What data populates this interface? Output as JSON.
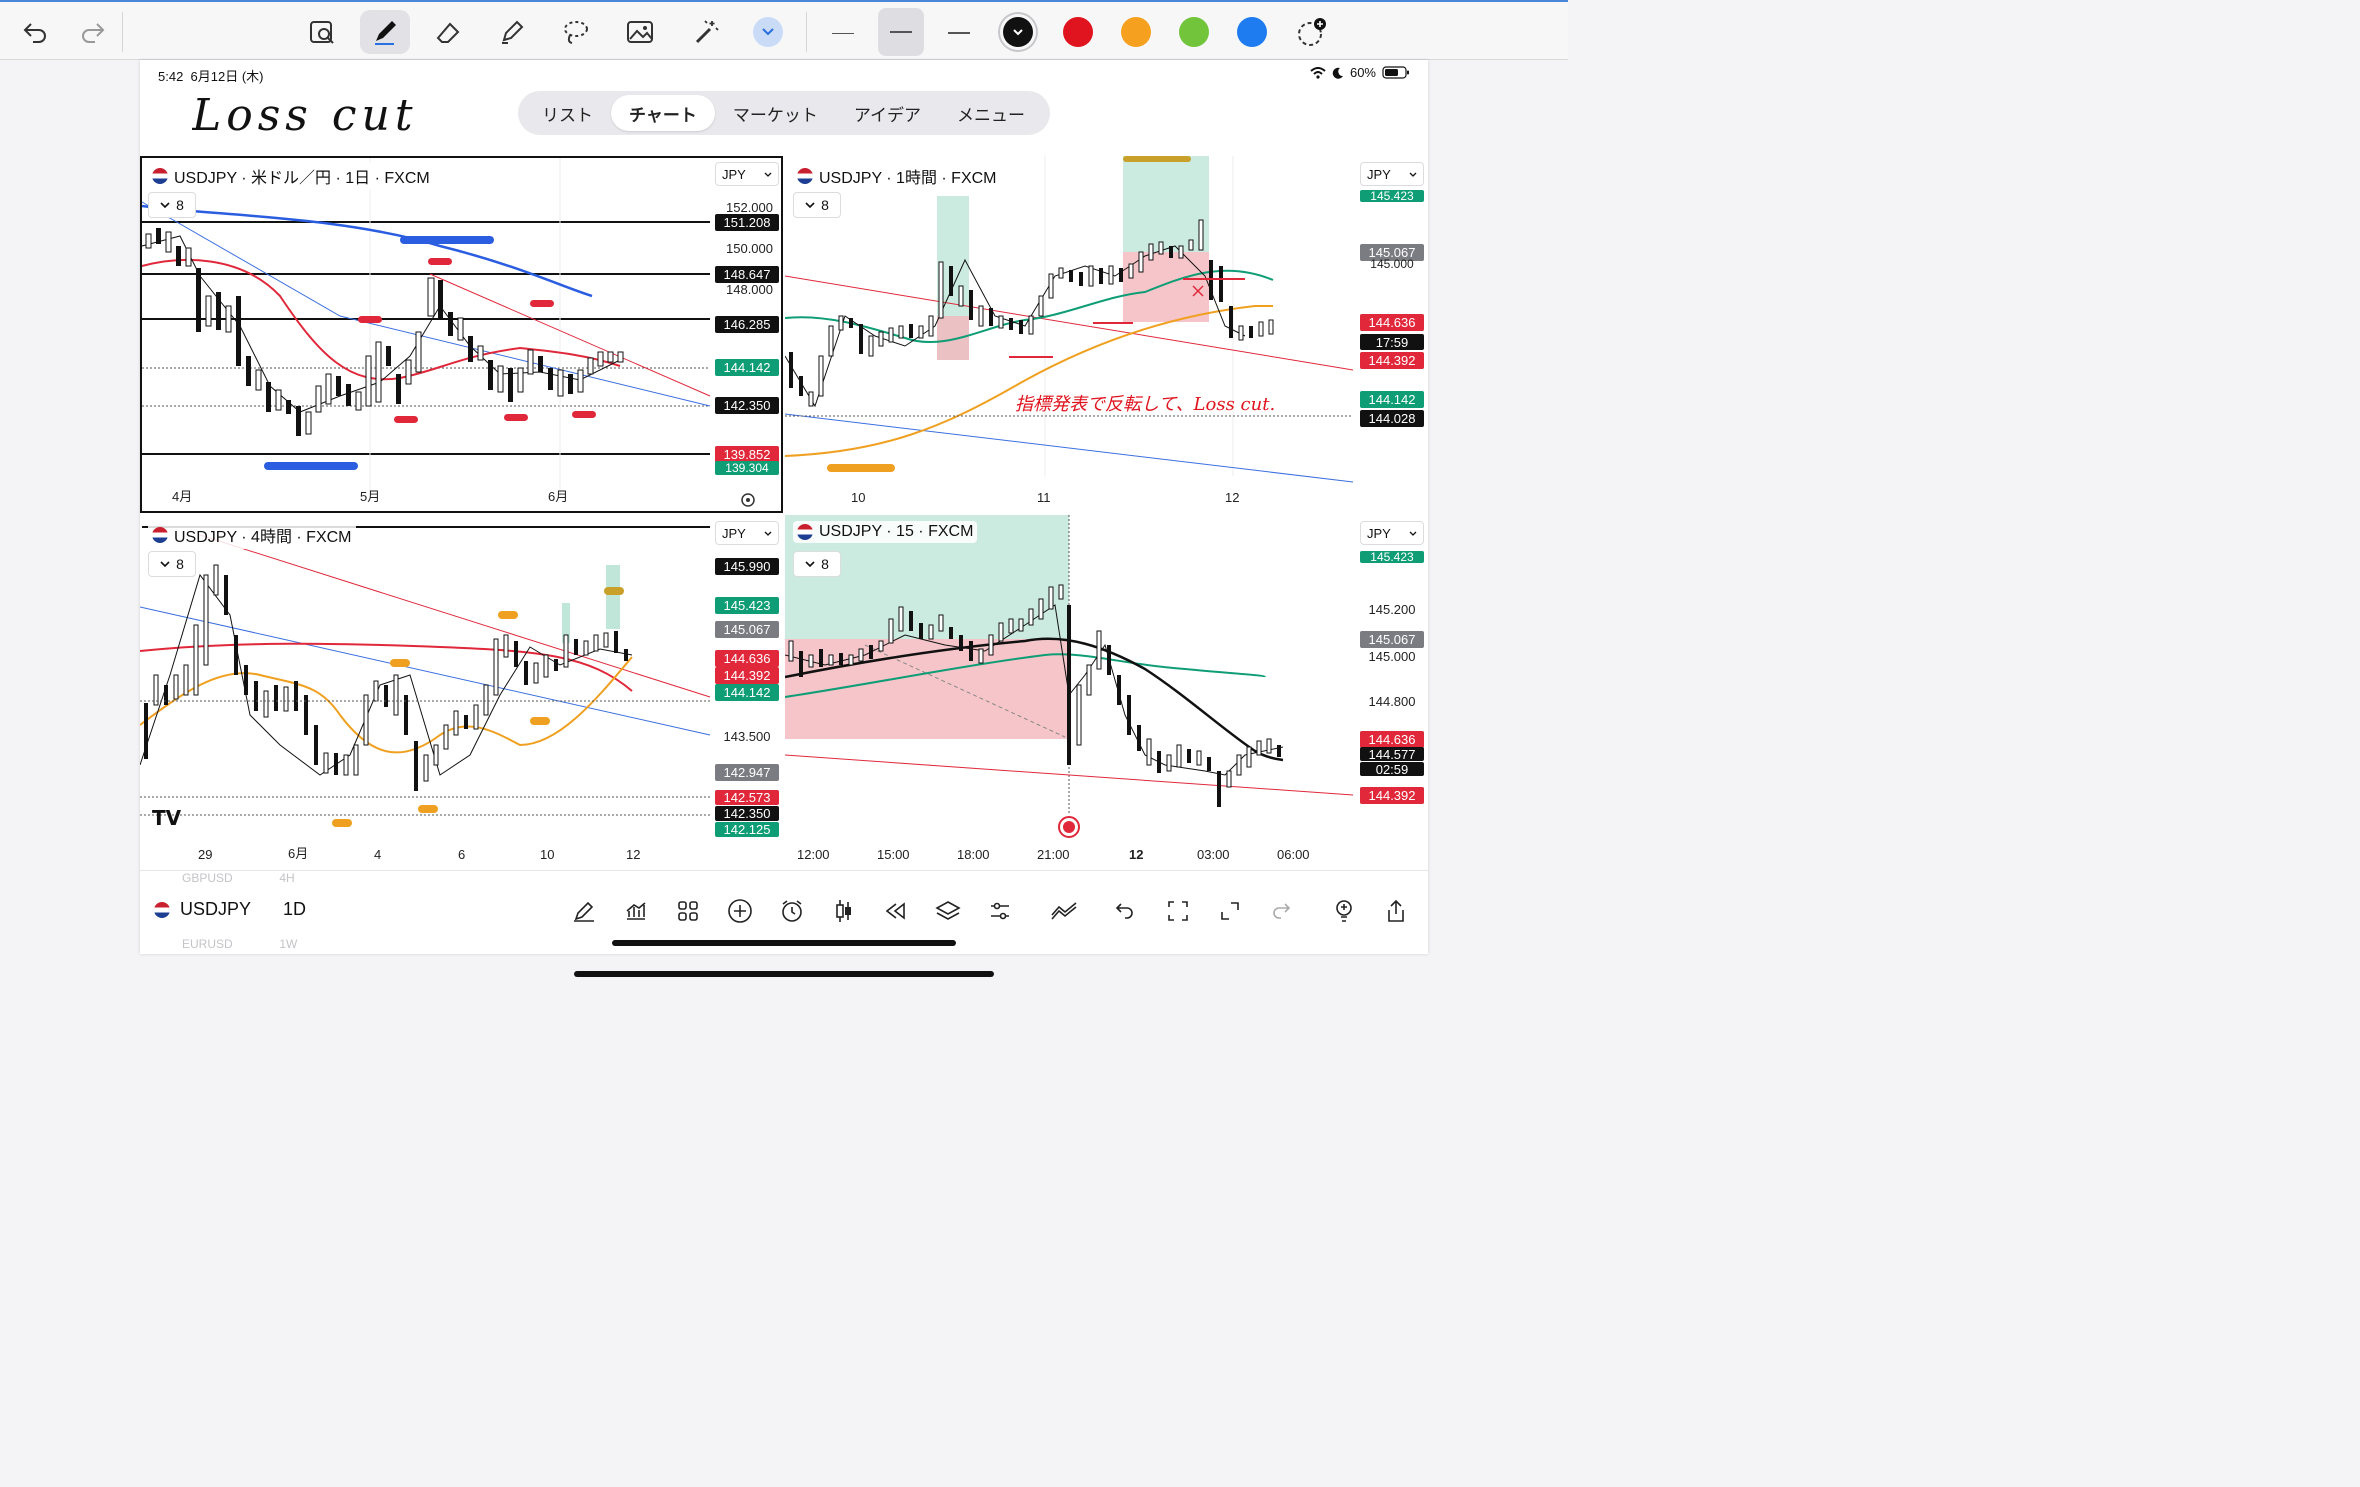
{
  "toolbar": {
    "tools": [
      "undo-icon",
      "redo-icon",
      "image-search-icon",
      "pen-icon",
      "eraser-icon",
      "highlighter-icon",
      "lasso-icon",
      "image-icon",
      "magic-wand-icon",
      "chevron-down-icon"
    ],
    "line_widths": [
      "thin",
      "medium",
      "thick"
    ],
    "selected_line_width": "medium",
    "colors": [
      "#111111",
      "#e0141e",
      "#f5a11f",
      "#72c43a",
      "#1f7cf0"
    ],
    "selected_color": "#111111"
  },
  "status": {
    "time": "5:42",
    "date": "6月12日 (木)",
    "battery": "60%"
  },
  "handwritten_title": "Loss cut",
  "tabs": [
    {
      "label": "リスト",
      "active": false
    },
    {
      "label": "チャート",
      "active": true
    },
    {
      "label": "マーケット",
      "active": false
    },
    {
      "label": "アイデア",
      "active": false
    },
    {
      "label": "メニュー",
      "active": false
    }
  ],
  "panels": {
    "daily": {
      "title": "USDJPY · 米ドル／円 · 1日 · FXCM",
      "indicator_count": "8",
      "currency": "JPY",
      "price_levels": [
        "152.000",
        "150.000",
        "148.000"
      ],
      "tags": [
        {
          "text": "151.208",
          "color": "#111111"
        },
        {
          "text": "148.647",
          "color": "#111111"
        },
        {
          "text": "146.285",
          "color": "#111111"
        },
        {
          "text": "144.142",
          "color": "#0f9d76"
        },
        {
          "text": "142.350",
          "color": "#111111"
        },
        {
          "text": "139.852",
          "color": "#e0283a"
        },
        {
          "text": "139.304",
          "color": "#0f9d76"
        }
      ],
      "x_labels": [
        "4月",
        "5月",
        "6月"
      ]
    },
    "hourly": {
      "title": "USDJPY · 1時間 · FXCM",
      "indicator_count": "8",
      "currency": "JPY",
      "tags": [
        {
          "text": "145.423",
          "color": "#0f9d76"
        },
        {
          "text": "145.067",
          "color": "#7b7b82"
        },
        {
          "text": "145.000",
          "color": "transparent"
        },
        {
          "text": "144.636",
          "color": "#e0283a"
        },
        {
          "text": "17:59",
          "color": "#111111"
        },
        {
          "text": "144.392",
          "color": "#e0283a"
        },
        {
          "text": "144.142",
          "color": "#0f9d76"
        },
        {
          "text": "144.028",
          "color": "#111111"
        }
      ],
      "note": "指標発表で反転して、Loss cut.",
      "x_labels": [
        "10",
        "11",
        "12"
      ]
    },
    "four_hour": {
      "title": "USDJPY · 4時間 · FXCM",
      "indicator_count": "8",
      "currency": "JPY",
      "tags": [
        {
          "text": "145.990",
          "color": "#111111"
        },
        {
          "text": "145.423",
          "color": "#0f9d76"
        },
        {
          "text": "145.067",
          "color": "#7b7b82"
        },
        {
          "text": "144.636",
          "color": "#e0283a"
        },
        {
          "text": "144.392",
          "color": "#e0283a"
        },
        {
          "text": "144.142",
          "color": "#0f9d76"
        },
        {
          "text": "143.500",
          "color": "transparent"
        },
        {
          "text": "142.947",
          "color": "#7b7b82"
        },
        {
          "text": "142.573",
          "color": "#e0283a"
        },
        {
          "text": "142.350",
          "color": "#111111"
        },
        {
          "text": "142.125",
          "color": "#0f9d76"
        }
      ],
      "x_labels": [
        "29",
        "6月",
        "4",
        "6",
        "10",
        "12"
      ]
    },
    "m15": {
      "title": "USDJPY · 15 · FXCM",
      "indicator_count": "8",
      "currency": "JPY",
      "tags": [
        {
          "text": "145.423",
          "color": "#0f9d76"
        },
        {
          "text": "145.200",
          "color": "transparent"
        },
        {
          "text": "145.067",
          "color": "#7b7b82"
        },
        {
          "text": "145.000",
          "color": "transparent"
        },
        {
          "text": "144.800",
          "color": "transparent"
        },
        {
          "text": "144.636",
          "color": "#e0283a"
        },
        {
          "text": "144.577",
          "color": "#111111"
        },
        {
          "text": "02:59",
          "color": "#111111"
        },
        {
          "text": "144.392",
          "color": "#e0283a"
        }
      ],
      "x_labels": [
        "12:00",
        "15:00",
        "18:00",
        "21:00",
        "12",
        "03:00",
        "06:00"
      ]
    }
  },
  "bottom": {
    "symbol": "USDJPY",
    "resolution": "1D",
    "ghost_above": "GBPUSD",
    "ghost_above_res": "4H",
    "ghost_below": "EURUSD",
    "ghost_below_res": "1W",
    "icons": [
      "drawing-icon",
      "indicators-icon",
      "layouts-icon",
      "add-icon",
      "alert-icon",
      "candle-type-icon",
      "replay-icon",
      "layers-icon",
      "settings-icon",
      "compare-icon",
      "undo-icon",
      "fullscreen-select-icon",
      "expand-icon",
      "redo-icon",
      "lightbulb-icon",
      "share-icon"
    ]
  }
}
